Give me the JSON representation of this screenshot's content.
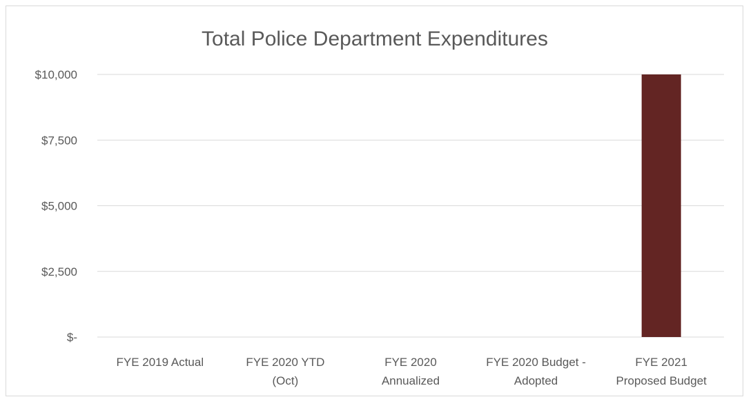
{
  "chart_data": {
    "type": "bar",
    "title": "Total Police Department Expenditures",
    "xlabel": "",
    "ylabel": "",
    "categories": [
      [
        "FYE 2019  Actual"
      ],
      [
        "FYE 2020 YTD",
        "(Oct)"
      ],
      [
        "FYE 2020",
        "Annualized"
      ],
      [
        "FYE 2020 Budget -",
        "Adopted"
      ],
      [
        "FYE 2021",
        "Proposed Budget"
      ]
    ],
    "values": [
      0,
      0,
      0,
      0,
      10000
    ],
    "ylim": [
      0,
      10000
    ],
    "yticks": [
      0,
      2500,
      5000,
      7500,
      10000
    ],
    "ytick_labels": [
      "$-",
      "$2,500",
      "$5,000",
      "$7,500",
      "$10,000"
    ],
    "grid": true,
    "legend": "none",
    "bar_color": "#632523",
    "grid_color": "#d9d9d9",
    "text_color": "#595959"
  }
}
